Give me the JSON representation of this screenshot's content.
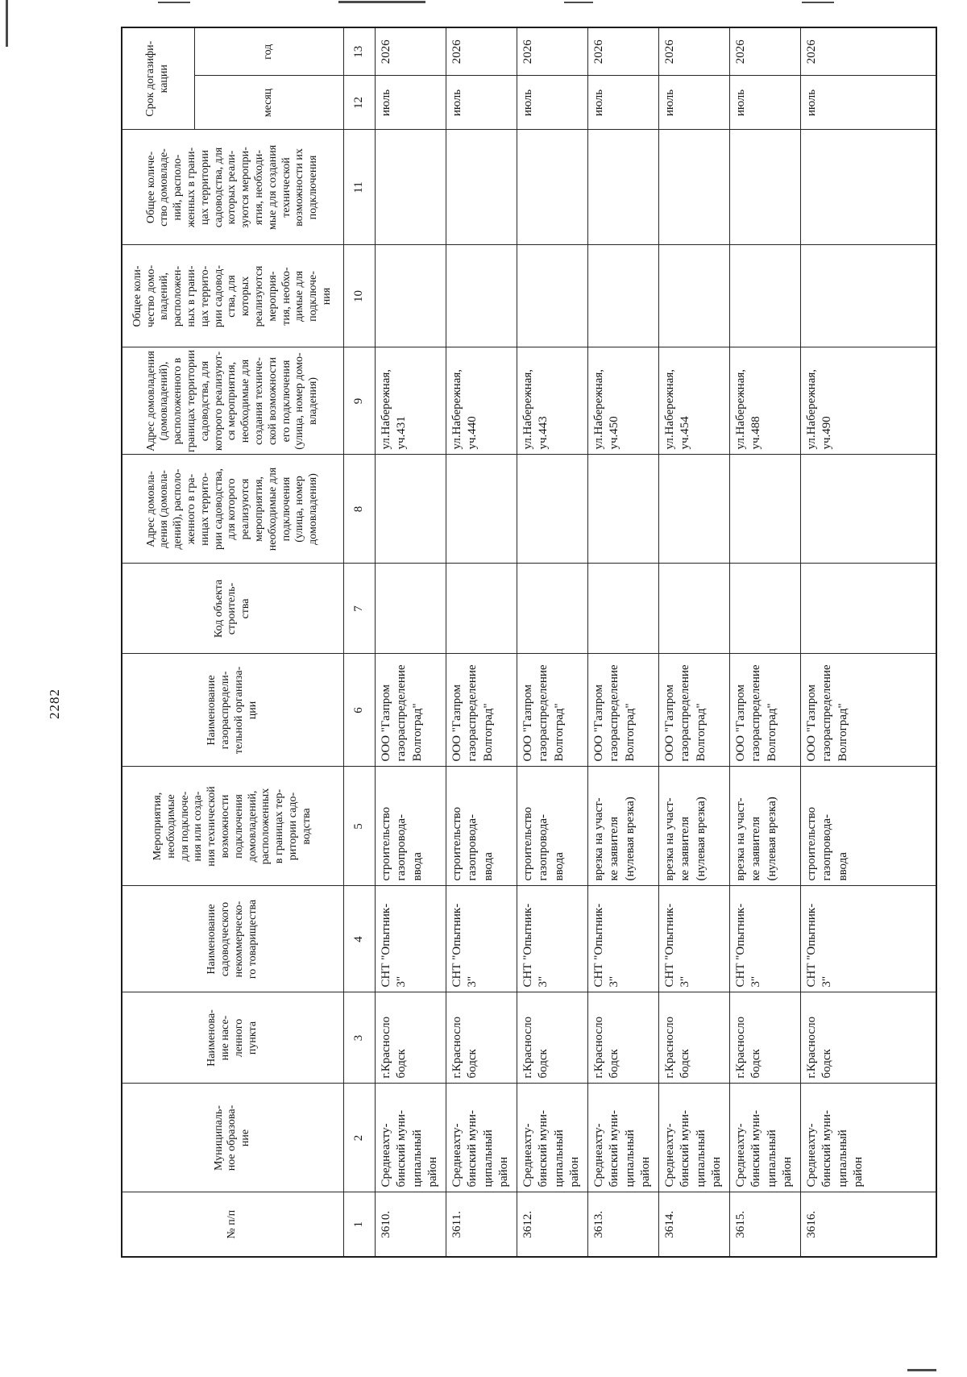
{
  "page": {
    "number": "2282"
  },
  "table": {
    "header": {
      "col1": "№ п/п",
      "col2": "Муниципаль-\nное образова-\nние",
      "col3": "Наименова-\nние насе-\nленного\nпункта",
      "col4": "Наименование\nсадоводческого\nнекоммерческо-\nго товарищества",
      "col5": "Мероприятия,\nнеобходимые\nдля подключе-\nния или созда-\nния технической\nвозможности\nподключения\nдомовладений,\nрасположенных\nв границах тер-\nритории садо-\nводства",
      "col6": "Наименование\nгазораспредели-\nтельной организа-\nции",
      "col7": "Код объекта\nстроитель-\nства",
      "col8": "Адрес домовла-\nдения (домовла-\nдений), располо-\nженного в гра-\nницах террито-\nрии садоводства,\nдля которого\nреализуются\nмероприятия,\nнеобходимые для\nподключения\n(улица, номер\nдомовладения)",
      "col9": "Адрес домовладения\n(домовладений),\nрасположенного в\nграницах территории\nсадоводства, для\nкоторого реализуют-\nся мероприятия,\nнеобходимые для\nсоздания техниче-\nской возможности\nего подключения\n(улица, номер домо-\nвладения)",
      "col10": "Общее коли-\nчество домо-\nвладений,\nрасположен-\nных в грани-\nцах террито-\nрии садовод-\nства, для\nкоторых\nреализуются\nмероприя-\nтия, необхо-\nдимые для\nподключе-\nния",
      "col11": "Общее количе-\nство домовладе-\nний, располо-\nженных в грани-\nцах территории\nсадоводства, для\nкоторых реали-\nзуются меропри-\nятия, необходи-\nмые для создания\nтехнической\nвозможности их\nподключения",
      "srok_label": "Срок догазифи-\nкации",
      "srok_month": "месяц",
      "srok_year": "год"
    },
    "numbering": [
      "1",
      "2",
      "3",
      "4",
      "5",
      "6",
      "7",
      "8",
      "9",
      "10",
      "11",
      "12",
      "13"
    ],
    "rows": [
      {
        "num": "3610.",
        "municipality": "Среднеахту-\nбинский муни-\nципальный\nрайон",
        "settlement": "г.Красносло\nбодск",
        "snt": "СНТ \"Опытник-\n3\"",
        "measure": "строительство\nгазопровода-\nввода",
        "gro": "ООО \"Газпром\nгазораспределение\nВолгоград\"",
        "code": "",
        "address8": "",
        "address9": "ул.Набережная,\nуч.431",
        "count10": "",
        "count11": "",
        "month": "июль",
        "year": "2026"
      },
      {
        "num": "3611.",
        "municipality": "Среднеахту-\nбинский муни-\nципальный\nрайон",
        "settlement": "г.Красносло\nбодск",
        "snt": "СНТ \"Опытник-\n3\"",
        "measure": "строительство\nгазопровода-\nввода",
        "gro": "ООО \"Газпром\nгазораспределение\nВолгоград\"",
        "code": "",
        "address8": "",
        "address9": "ул.Набережная,\nуч.440",
        "count10": "",
        "count11": "",
        "month": "июль",
        "year": "2026"
      },
      {
        "num": "3612.",
        "municipality": "Среднеахту-\nбинский муни-\nципальный\nрайон",
        "settlement": "г.Красносло\nбодск",
        "snt": "СНТ \"Опытник-\n3\"",
        "measure": "строительство\nгазопровода-\nввода",
        "gro": "ООО \"Газпром\nгазораспределение\nВолгоград\"",
        "code": "",
        "address8": "",
        "address9": "ул.Набережная,\nуч.443",
        "count10": "",
        "count11": "",
        "month": "июль",
        "year": "2026"
      },
      {
        "num": "3613.",
        "municipality": "Среднеахту-\nбинский муни-\nципальный\nрайон",
        "settlement": "г.Красносло\nбодск",
        "snt": "СНТ \"Опытник-\n3\"",
        "measure": "врезка на участ-\nке заявителя\n(нулевая врезка)",
        "gro": "ООО \"Газпром\nгазораспределение\nВолгоград\"",
        "code": "",
        "address8": "",
        "address9": "ул.Набережная,\nуч.450",
        "count10": "",
        "count11": "",
        "month": "июль",
        "year": "2026"
      },
      {
        "num": "3614.",
        "municipality": "Среднеахту-\nбинский муни-\nципальный\nрайон",
        "settlement": "г.Красносло\nбодск",
        "snt": "СНТ \"Опытник-\n3\"",
        "measure": "врезка на участ-\nке заявителя\n(нулевая врезка)",
        "gro": "ООО \"Газпром\nгазораспределение\nВолгоград\"",
        "code": "",
        "address8": "",
        "address9": "ул.Набережная,\nуч.454",
        "count10": "",
        "count11": "",
        "month": "июль",
        "year": "2026"
      },
      {
        "num": "3615.",
        "municipality": "Среднеахту-\nбинский муни-\nципальный\nрайон",
        "settlement": "г.Красносло\nбодск",
        "snt": "СНТ \"Опытник-\n3\"",
        "measure": "врезка на участ-\nке заявителя\n(нулевая врезка)",
        "gro": "ООО \"Газпром\nгазораспределение\nВолгоград\"",
        "code": "",
        "address8": "",
        "address9": "ул.Набережная,\nуч.488",
        "count10": "",
        "count11": "",
        "month": "июль",
        "year": "2026"
      },
      {
        "num": "3616.",
        "municipality": "Среднеахту-\nбинский муни-\nципальный\nрайон",
        "settlement": "г.Красносло\nбодск",
        "snt": "СНТ \"Опытник-\n3\"",
        "measure": "строительство\nгазопровода-\nввода",
        "gro": "ООО \"Газпром\nгазораспределение\nВолгоград\"",
        "code": "",
        "address8": "",
        "address9": "ул.Набережная,\nуч.490",
        "count10": "",
        "count11": "",
        "month": "июль",
        "year": "2026"
      }
    ]
  }
}
